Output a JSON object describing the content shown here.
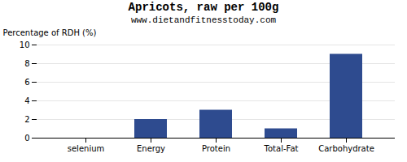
{
  "chart_data": {
    "type": "bar",
    "title": "Apricots, raw per 100g",
    "subtitle": "www.dietandfitnesstoday.com",
    "categories": [
      "selenium",
      "Energy",
      "Protein",
      "Total-Fat",
      "Carbohydrate"
    ],
    "values": [
      0,
      2,
      3,
      1,
      9
    ],
    "color": "#2e4b8f",
    "ylabel": "Percentage of RDH (%)",
    "ylim": [
      0,
      10
    ],
    "yticks": [
      0,
      2,
      4,
      6,
      8,
      10
    ],
    "grid": true
  }
}
